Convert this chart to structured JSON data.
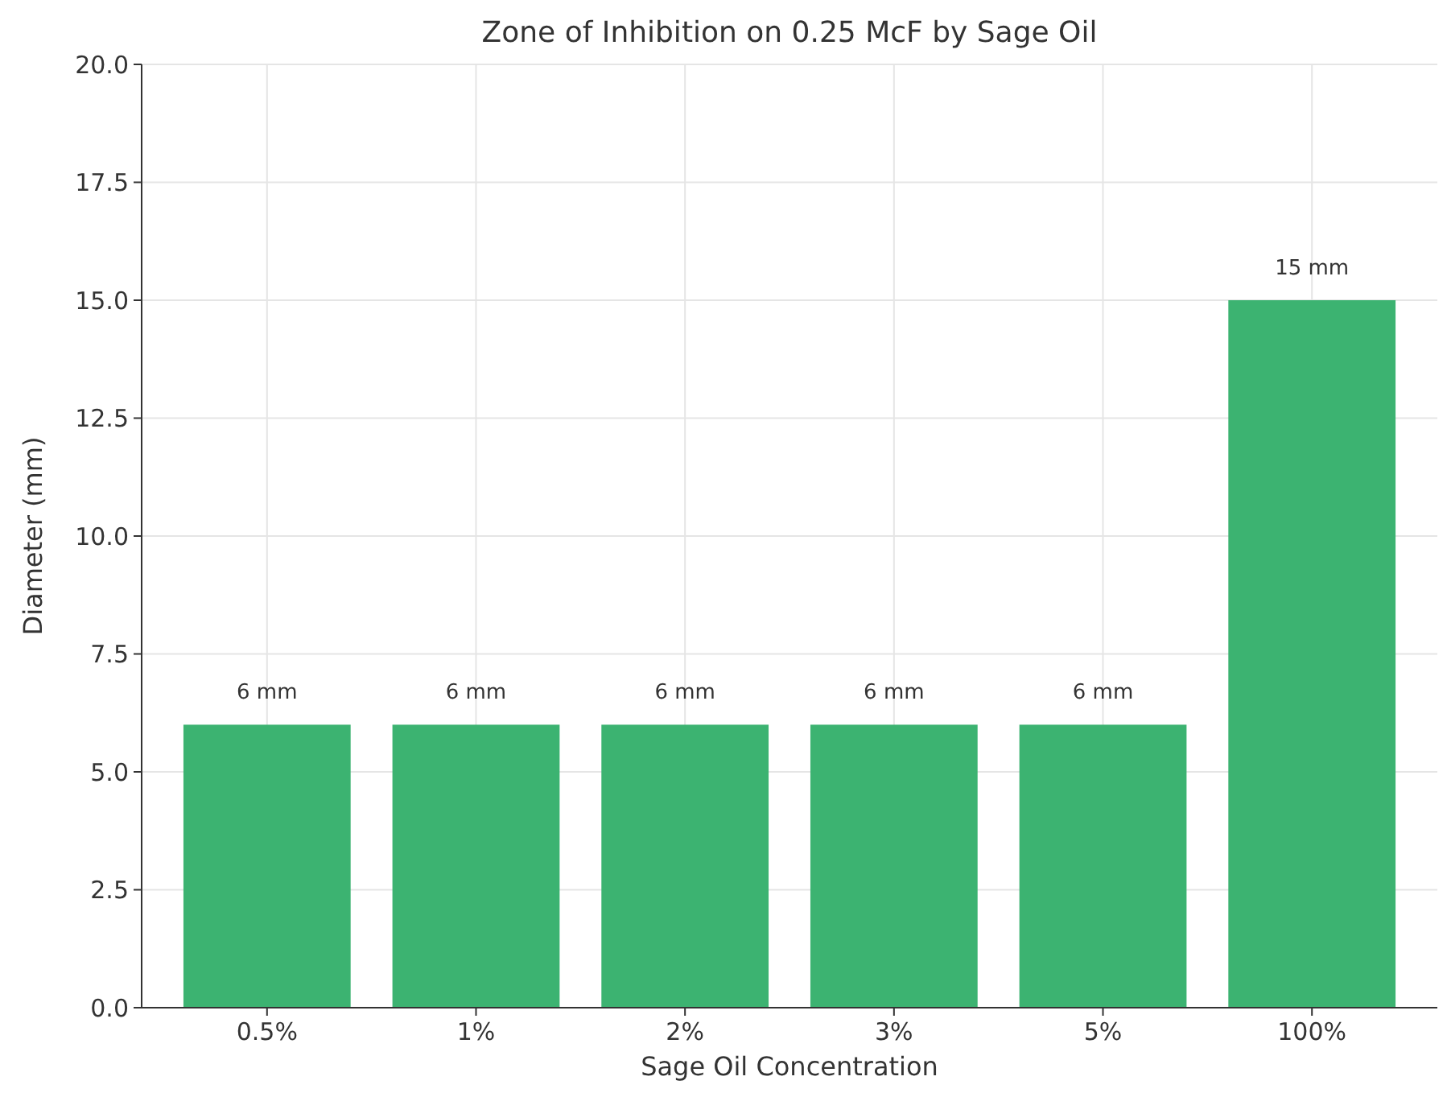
{
  "chart_data": {
    "type": "bar",
    "title": "Zone of Inhibition on 0.25 McF by Sage Oil",
    "xlabel": "Sage Oil Concentration",
    "ylabel": "Diameter (mm)",
    "categories": [
      "0.5%",
      "1%",
      "2%",
      "3%",
      "5%",
      "100%"
    ],
    "values": [
      6,
      6,
      6,
      6,
      6,
      15
    ],
    "value_labels": [
      "6 mm",
      "6 mm",
      "6 mm",
      "6 mm",
      "6 mm",
      "15 mm"
    ],
    "color": "#3cb371",
    "ylim": [
      0,
      20
    ],
    "yticks": [
      {
        "value": 0,
        "label": "0.0"
      },
      {
        "value": 2.5,
        "label": "2.5"
      },
      {
        "value": 5,
        "label": "5.0"
      },
      {
        "value": 7.5,
        "label": "7.5"
      },
      {
        "value": 10,
        "label": "10.0"
      },
      {
        "value": 12.5,
        "label": "12.5"
      },
      {
        "value": 15,
        "label": "15.0"
      },
      {
        "value": 17.5,
        "label": "17.5"
      },
      {
        "value": 20,
        "label": "20.0"
      }
    ],
    "grid": true
  }
}
